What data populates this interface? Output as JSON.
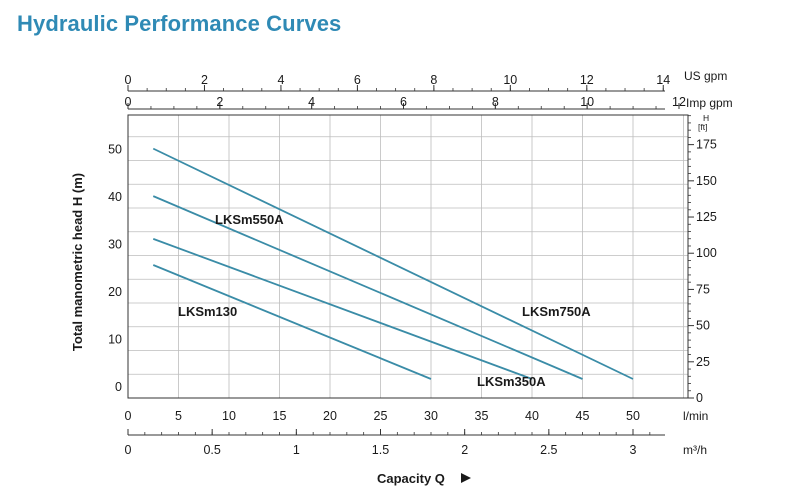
{
  "page_title": "Hydraulic Performance Curves",
  "colors": {
    "title": "#2f8ab5",
    "curve": "#3a8ca7",
    "grid": "#bdbdbd",
    "frame": "#333333"
  },
  "chart_data": {
    "type": "line",
    "title": "Hydraulic Performance Curves",
    "xlabel": "Capacity Q",
    "ylabel": "Total manometric head H (m)",
    "y_right_label": "H\n[ft]",
    "x_units": [
      "l/min",
      "m³/h",
      "US gpm",
      "Imp gpm"
    ],
    "x_main_unit": "l/min",
    "x_main_label": "l/min",
    "x_main_ticks": [
      "0",
      "5",
      "10",
      "15",
      "20",
      "25",
      "30",
      "35",
      "40",
      "45",
      "50"
    ],
    "x_m3h_label": "m³/h",
    "x_m3h_ticks": [
      "0",
      "0.5",
      "1",
      "1.5",
      "2",
      "2.5",
      "3"
    ],
    "x_usgpm_label": "US gpm",
    "x_usgpm_ticks": [
      "0",
      "2",
      "4",
      "6",
      "8",
      "10",
      "12",
      "14"
    ],
    "x_impgpm_label": "Imp gpm",
    "x_impgpm_ticks": [
      "0",
      "2",
      "4",
      "6",
      "8",
      "10",
      "12"
    ],
    "y_left_ticks": [
      "0",
      "10",
      "20",
      "30",
      "40",
      "50"
    ],
    "y_right_unit_top": "H",
    "y_right_unit_bottom": "[ft]",
    "y_right_ticks": [
      "0",
      "25",
      "50",
      "75",
      "100",
      "125",
      "150",
      "175"
    ],
    "xlim": [
      0,
      55
    ],
    "ylim": [
      0,
      59
    ],
    "grid": true,
    "series": [
      {
        "name": "LKSm130",
        "label": "LKSm130",
        "x": [
          2.5,
          30
        ],
        "y": [
          28,
          4
        ]
      },
      {
        "name": "LKSm350A",
        "label": "LKSm350A",
        "x": [
          2.5,
          40
        ],
        "y": [
          33.5,
          4
        ]
      },
      {
        "name": "LKSm550A",
        "label": "LKSm550A",
        "x": [
          2.5,
          45
        ],
        "y": [
          42.5,
          4
        ]
      },
      {
        "name": "LKSm750A",
        "label": "LKSm750A",
        "x": [
          2.5,
          50
        ],
        "y": [
          52.5,
          4
        ]
      }
    ]
  }
}
